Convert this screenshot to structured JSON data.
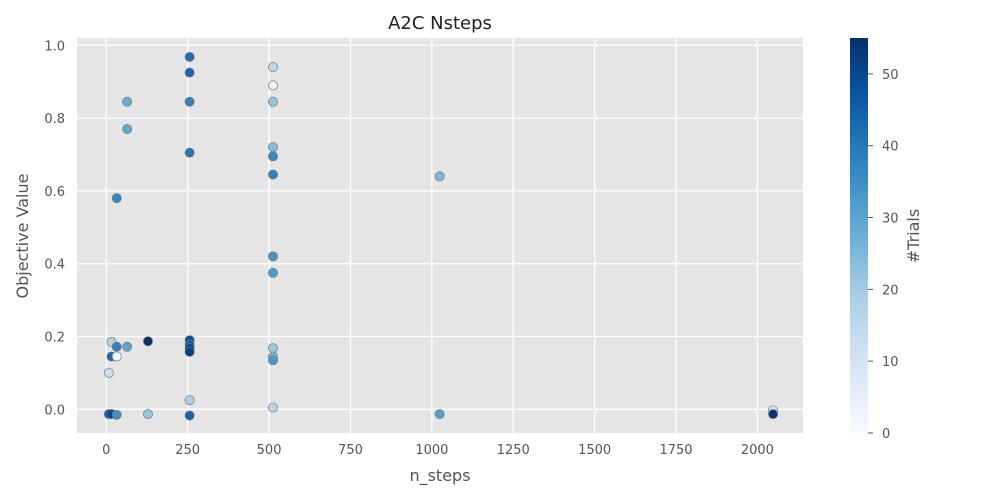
{
  "chart_data": {
    "type": "scatter",
    "title": "A2C Nsteps",
    "xlabel": "n_steps",
    "ylabel": "Objective Value",
    "xlim": [
      -90,
      2140
    ],
    "ylim": [
      -0.065,
      1.02
    ],
    "xticks": [
      0,
      250,
      500,
      750,
      1000,
      1250,
      1500,
      1750,
      2000
    ],
    "xtick_labels": [
      "0",
      "250",
      "500",
      "750",
      "1000",
      "1250",
      "1500",
      "1750",
      "2000"
    ],
    "yticks": [
      0.0,
      0.2,
      0.4,
      0.6,
      0.8,
      1.0
    ],
    "ytick_labels": [
      "0.0",
      "0.2",
      "0.4",
      "0.6",
      "0.8",
      "1.0"
    ],
    "grid": true,
    "colorbar": {
      "label": "#Trials",
      "range": [
        0,
        55
      ],
      "ticks": [
        0,
        10,
        20,
        30,
        40,
        50
      ],
      "tick_labels": [
        "0",
        "10",
        "20",
        "30",
        "40",
        "50"
      ],
      "colormap": [
        "#f7fbff",
        "#deebf7",
        "#c6dbef",
        "#9ecae1",
        "#6baed6",
        "#4292c6",
        "#2171b5",
        "#08519c",
        "#08306b"
      ]
    },
    "points": [
      {
        "x": 8,
        "y": 0.1,
        "trial": 12
      },
      {
        "x": 16,
        "y": 0.185,
        "trial": 17
      },
      {
        "x": 16,
        "y": 0.145,
        "trial": 43
      },
      {
        "x": 32,
        "y": 0.145,
        "trial": 2
      },
      {
        "x": 32,
        "y": 0.172,
        "trial": 38
      },
      {
        "x": 32,
        "y": 0.58,
        "trial": 37
      },
      {
        "x": 64,
        "y": 0.172,
        "trial": 30
      },
      {
        "x": 64,
        "y": 0.77,
        "trial": 29
      },
      {
        "x": 64,
        "y": 0.845,
        "trial": 28
      },
      {
        "x": 8,
        "y": -0.013,
        "trial": 47
      },
      {
        "x": 16,
        "y": -0.013,
        "trial": 50
      },
      {
        "x": 32,
        "y": -0.015,
        "trial": 35
      },
      {
        "x": 128,
        "y": 0.187,
        "trial": 55
      },
      {
        "x": 128,
        "y": -0.013,
        "trial": 22
      },
      {
        "x": 256,
        "y": 0.968,
        "trial": 42
      },
      {
        "x": 256,
        "y": 0.925,
        "trial": 43
      },
      {
        "x": 256,
        "y": 0.845,
        "trial": 38
      },
      {
        "x": 256,
        "y": 0.705,
        "trial": 40
      },
      {
        "x": 256,
        "y": 0.19,
        "trial": 48
      },
      {
        "x": 256,
        "y": 0.178,
        "trial": 45
      },
      {
        "x": 256,
        "y": 0.168,
        "trial": 50
      },
      {
        "x": 256,
        "y": 0.158,
        "trial": 52
      },
      {
        "x": 256,
        "y": 0.025,
        "trial": 18
      },
      {
        "x": 256,
        "y": -0.017,
        "trial": 44
      },
      {
        "x": 512,
        "y": 0.94,
        "trial": 15
      },
      {
        "x": 512,
        "y": 0.89,
        "trial": 3
      },
      {
        "x": 512,
        "y": 0.845,
        "trial": 22
      },
      {
        "x": 512,
        "y": 0.72,
        "trial": 24
      },
      {
        "x": 512,
        "y": 0.695,
        "trial": 36
      },
      {
        "x": 512,
        "y": 0.645,
        "trial": 38
      },
      {
        "x": 512,
        "y": 0.42,
        "trial": 34
      },
      {
        "x": 512,
        "y": 0.375,
        "trial": 32
      },
      {
        "x": 512,
        "y": 0.168,
        "trial": 21
      },
      {
        "x": 512,
        "y": 0.145,
        "trial": 26
      },
      {
        "x": 512,
        "y": 0.135,
        "trial": 33
      },
      {
        "x": 512,
        "y": 0.005,
        "trial": 16
      },
      {
        "x": 1024,
        "y": 0.64,
        "trial": 25
      },
      {
        "x": 1024,
        "y": -0.013,
        "trial": 31
      },
      {
        "x": 2048,
        "y": -0.003,
        "trial": 10
      },
      {
        "x": 2048,
        "y": -0.013,
        "trial": 54
      }
    ]
  }
}
